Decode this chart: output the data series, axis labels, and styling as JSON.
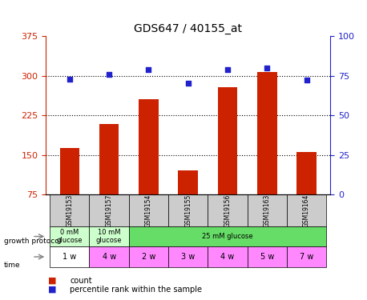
{
  "title": "GDS647 / 40155_at",
  "samples": [
    "GSM19153",
    "GSM19157",
    "GSM19154",
    "GSM19155",
    "GSM19156",
    "GSM19163",
    "GSM19164"
  ],
  "bar_values": [
    163,
    208,
    255,
    120,
    278,
    307,
    155
  ],
  "dot_values": [
    73,
    76,
    79,
    70,
    79,
    80,
    72
  ],
  "ylim_left": [
    75,
    375
  ],
  "yticks_left": [
    75,
    150,
    225,
    300,
    375
  ],
  "ylim_right": [
    0,
    100
  ],
  "yticks_right": [
    0,
    25,
    50,
    75,
    100
  ],
  "bar_color": "#cc2200",
  "dot_color": "#2222cc",
  "growth_protocol_labels": [
    "0 mM\nglucose",
    "10 mM\nglucose",
    "25 mM glucose"
  ],
  "growth_protocol_spans": [
    1,
    1,
    5
  ],
  "growth_protocol_colors": [
    "#ccffcc",
    "#ccffcc",
    "#66dd66"
  ],
  "time_labels": [
    "1 w",
    "4 w",
    "2 w",
    "3 w",
    "4 w",
    "5 w",
    "7 w"
  ],
  "time_color": "#ff88ff",
  "sample_bg_color": "#cccccc",
  "legend_count_color": "#cc2200",
  "legend_dot_color": "#2222cc",
  "ylabel_left_color": "#cc2200",
  "ylabel_right_color": "#2222cc",
  "grid_color": "#aaaaaa"
}
